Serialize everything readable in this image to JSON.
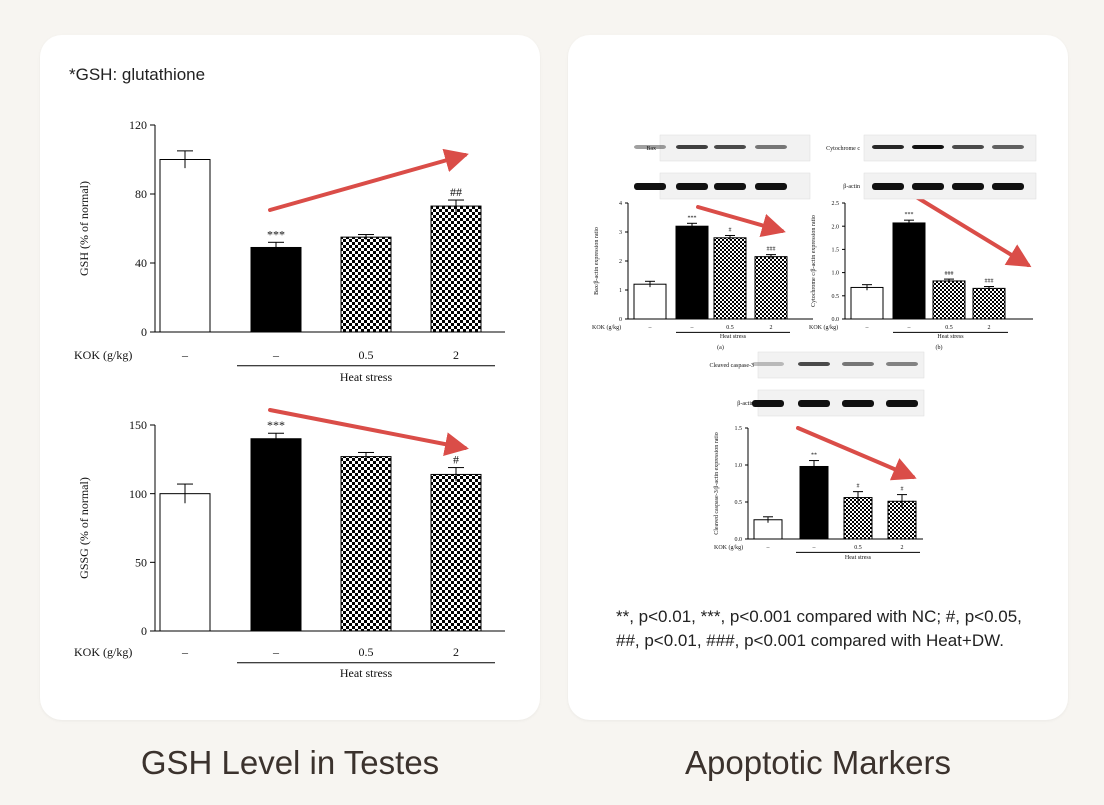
{
  "left_panel": {
    "note": "*GSH: glutathione",
    "caption": "GSH Level in Testes"
  },
  "right_panel": {
    "caption": "Apoptotic Markers",
    "footnote": "**, p<0.01, ***, p<0.001 compared with NC; #, p<0.05, ##, p<0.01, ###, p<0.001 compared with Heat+DW."
  },
  "colors": {
    "arrow": "#d63a35",
    "bar_black": "#000000",
    "bar_white": "#ffffff",
    "card": "#ffffff",
    "background": "#f7f5f1"
  },
  "chart_data": [
    {
      "id": "gsh",
      "type": "bar",
      "ylabel": "GSH (% of normal)",
      "ylim": [
        0,
        120
      ],
      "yticks": [
        "0",
        "40",
        "80",
        "120"
      ],
      "row_label": "KOK (g/kg)",
      "group_label": "Heat stress",
      "categories": [
        "–",
        "–",
        "0.5",
        "2"
      ],
      "values": [
        100,
        49,
        55,
        73
      ],
      "errors": [
        5,
        3,
        1.5,
        3.5
      ],
      "styles": [
        "white",
        "black",
        "checker",
        "checker"
      ],
      "annotations": [
        "",
        "***",
        "",
        "##"
      ],
      "trend_arrow": "up"
    },
    {
      "id": "gssg",
      "type": "bar",
      "ylabel": "GSSG (% of normal)",
      "ylim": [
        0,
        150
      ],
      "yticks": [
        "0",
        "50",
        "100",
        "150"
      ],
      "row_label": "KOK (g/kg)",
      "group_label": "Heat stress",
      "categories": [
        "–",
        "–",
        "0.5",
        "2"
      ],
      "values": [
        100,
        140,
        127,
        114
      ],
      "errors": [
        7,
        4,
        3,
        5
      ],
      "styles": [
        "white",
        "black",
        "checker",
        "checker"
      ],
      "annotations": [
        "",
        "***",
        "",
        "#"
      ],
      "trend_arrow": "down"
    },
    {
      "id": "bax",
      "type": "bar",
      "panel_label": "(a)",
      "blot_labels": [
        "Bax",
        "β-actin"
      ],
      "ylabel": "Bax/β-actin expression ratio",
      "ylim": [
        0,
        4
      ],
      "yticks": [
        "0",
        "1",
        "2",
        "3",
        "4"
      ],
      "row_label": "KOK (g/kg)",
      "group_label": "Heat stress",
      "categories": [
        "–",
        "–",
        "0.5",
        "2"
      ],
      "values": [
        1.2,
        3.2,
        2.8,
        2.15
      ],
      "errors": [
        0.1,
        0.1,
        0.08,
        0.07
      ],
      "styles": [
        "white",
        "black",
        "checker",
        "checker"
      ],
      "annotations": [
        "",
        "***",
        "#",
        "###"
      ],
      "trend_arrow": "down"
    },
    {
      "id": "cytc",
      "type": "bar",
      "panel_label": "(b)",
      "blot_labels": [
        "Cytochrome c",
        "β-actin"
      ],
      "ylabel": "Cytochrome c/β-actin expression ratio",
      "ylim": [
        0,
        2.5
      ],
      "yticks": [
        "0.0",
        "0.5",
        "1.0",
        "1.5",
        "2.0",
        "2.5"
      ],
      "row_label": "KOK (g/kg)",
      "group_label": "Heat stress",
      "categories": [
        "–",
        "–",
        "0.5",
        "2"
      ],
      "values": [
        0.68,
        2.07,
        0.82,
        0.66
      ],
      "errors": [
        0.06,
        0.06,
        0.04,
        0.04
      ],
      "styles": [
        "white",
        "black",
        "checker",
        "checker"
      ],
      "annotations": [
        "",
        "***",
        "###",
        "###"
      ],
      "trend_arrow": "down"
    },
    {
      "id": "casp3",
      "type": "bar",
      "blot_labels": [
        "Cleaved caspase-3",
        "β-actin"
      ],
      "ylabel": "Cleaved caspase-3/β-actin expression ratio",
      "ylim": [
        0,
        1.5
      ],
      "yticks": [
        "0.0",
        "0.5",
        "1.0",
        "1.5"
      ],
      "row_label": "KOK (g/kg)",
      "group_label": "Heat stress",
      "categories": [
        "–",
        "–",
        "0.5",
        "2"
      ],
      "values": [
        0.26,
        0.98,
        0.56,
        0.51
      ],
      "errors": [
        0.04,
        0.08,
        0.08,
        0.09
      ],
      "styles": [
        "white",
        "black",
        "checker",
        "checker"
      ],
      "annotations": [
        "",
        "**",
        "#",
        "#"
      ],
      "trend_arrow": "down"
    }
  ]
}
